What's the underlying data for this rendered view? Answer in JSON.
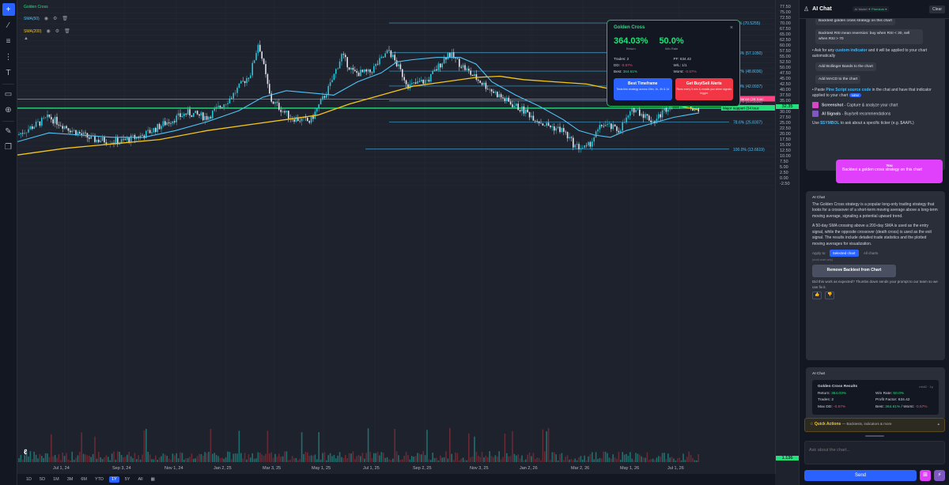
{
  "toolbar": {
    "icons": [
      "crosshair-icon",
      "trend-line-icon",
      "fib-icon",
      "pattern-icon",
      "text-icon",
      "ruler-icon",
      "zoom-icon",
      "brush-icon",
      "layers-icon"
    ]
  },
  "chart": {
    "symbol": "Golden Cross",
    "indicators": [
      {
        "name": "SMA(50)",
        "color": "#4fc3f7"
      },
      {
        "name": "SMA(200)",
        "color": "#f5c518"
      }
    ],
    "price_labels": [
      "77.50",
      "75.00",
      "72.50",
      "70.00",
      "67.50",
      "65.00",
      "62.50",
      "60.00",
      "57.50",
      "55.00",
      "52.50",
      "50.00",
      "47.50",
      "45.00",
      "42.50",
      "40.00",
      "37.50",
      "35.00",
      "32.50",
      "30.00",
      "27.50",
      "25.00",
      "22.50",
      "20.00",
      "17.50",
      "15.00",
      "12.50",
      "10.00",
      "7.50",
      "5.00",
      "2.50",
      "0.00",
      "-2.50"
    ],
    "date_labels": [
      "Jul 1, 24",
      "Sep 3, 24",
      "Nov 1, 24",
      "Jan 2, 25",
      "Mar 3, 25",
      "May 1, 25",
      "Jul 1, 25",
      "Sep 2, 25",
      "Nov 3, 25",
      "Jan 2, 26",
      "Mar 2, 26",
      "May 1, 26",
      "Jul 1, 26"
    ],
    "fib_levels": [
      {
        "label": "0.0% (70.5255)",
        "price": 70.5255
      },
      {
        "label": "23.6% (57.1050)",
        "price": 57.105
      },
      {
        "label": "38.2% (48.8036)",
        "price": 48.8036
      },
      {
        "label": "50.0% (42.0937)",
        "price": 42.0937
      },
      {
        "label": "61.8% (35.3838)",
        "price": 35.3838
      },
      {
        "label": "78.6% (25.8307)",
        "price": 25.8307
      },
      {
        "label": "100.0% (13.6619)",
        "price": 13.6619
      }
    ],
    "resistance": {
      "label": "Major resistance (24 touc",
      "price": 36.2
    },
    "support": {
      "label": "Major support (34 touc",
      "price": 32.1
    },
    "current_price": "32.35",
    "bottom_price": "1.136"
  },
  "ranges": [
    "1D",
    "5D",
    "1M",
    "3M",
    "6M",
    "YTD",
    "1Y",
    "5Y",
    "All"
  ],
  "active_range": "1Y",
  "stats_card": {
    "title": "Golden Cross",
    "return_value": "364.03%",
    "return_label": "Return",
    "winrate_value": "50.0%",
    "winrate_label": "Win Rate",
    "trades": "Trades: 2",
    "pf": "PF: 634.42",
    "dd_label": "DD:",
    "dd_value": "-0.57%",
    "wl": "W/L: 1/1",
    "best_label": "Best:",
    "best_value": "364.61%",
    "worst_label": "Worst:",
    "worst_value": "-0.57%",
    "btn1_title": "Best Timeframe",
    "btn1_desc": "Tests this strategy across 15m, 1h, 4h & 1d",
    "btn2_title": "Get Buy/Sell Alerts",
    "btn2_desc": "Runs every 5 min & emails you when signals trigger",
    "close": "×"
  },
  "panel": {
    "title": "AI Chat",
    "model_label": "AI Model",
    "model_value": "Premium",
    "clear": "Clear",
    "msg1": {
      "chip_top": "Backtest golden cross strategy on this chart",
      "chip_rsi": "Backtest RSI mean reversion: buy when RSI < 30, sell when RSI > 70",
      "custom_a": "• Ask for any ",
      "custom_b": "custom indicator",
      "custom_c": " and it will be applied to your chart automatically",
      "chip_bb": "Add Bollinger Bands to the chart",
      "chip_macd": "Add MACD to the chart",
      "paste_a": "• Paste ",
      "paste_b": "Pine Script source code",
      "paste_c": " in the chat and have that indicator applied to your chart",
      "new": "NEW",
      "shot_b": "Screenshot",
      "shot_c": " - Capture & analyze your chart",
      "sig_b": "AI Signals",
      "sig_c": " - Buy/sell recommendations",
      "use_a": "Use ",
      "use_b": "$SYMBOL",
      "use_c": " to ask about a specific ticker (e.g. $AAPL)"
    },
    "user": {
      "name": "You",
      "text": "Backtest a golden cross strategy on this chart"
    },
    "msg2": {
      "name": "AI Chat",
      "p1": "The Golden Cross strategy is a popular long-only trading strategy that looks for a crossover of a short-term moving average above a long-term moving average, signaling a potential upward trend.",
      "p2": "A 50-day SMA crossing above a 200-day SMA is used as the entry signal, while the opposite crossover (death cross) is used as the exit signal. The results include detailed trade statistics and the plotted moving averages for visualization.",
      "apply_to": "Apply to:",
      "sel_chart": "Selected chart",
      "all_charts": "All charts",
      "multi": "(multi-chart only)",
      "remove": "Remove Backtest from Chart",
      "feedback": "Did this work as expected? Thumbs down sends your prompt to our team so we can fix it."
    },
    "msg3": {
      "name": "AI Chat",
      "rtitle": "Golden Cross Results",
      "rtag": "mbtl2 · 1p",
      "ret_l": "Return:",
      "ret_v": "364.03%",
      "wr_l": "Win Rate:",
      "wr_v": "50.0%",
      "tr_l": "Trades: 2",
      "pf_l": "Profit Factor: 634.42",
      "dd_l": "Max DD:",
      "dd_v": "-0.57%",
      "bw_l": "Best:",
      "bw_v": "364.61%",
      "bw_s": " / Worst:",
      "bw_w": "-0.57%"
    },
    "quick_title": "Quick Actions",
    "quick_desc": "— Backtests, indicators & more",
    "input_placeholder": "Ask about the chart...",
    "send": "Send"
  }
}
